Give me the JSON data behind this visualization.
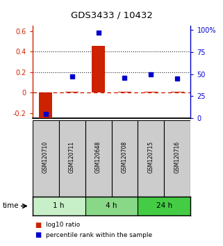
{
  "title": "GDS3433 / 10432",
  "samples": [
    "GSM120710",
    "GSM120711",
    "GSM120648",
    "GSM120708",
    "GSM120715",
    "GSM120716"
  ],
  "log10_ratio": [
    -0.255,
    0.005,
    0.455,
    0.005,
    0.005,
    0.005
  ],
  "percentile_rank": [
    5,
    47,
    97,
    46,
    50,
    45
  ],
  "ylim_left": [
    -0.25,
    0.65
  ],
  "ylim_right": [
    0,
    105
  ],
  "yticks_left": [
    -0.2,
    0.0,
    0.2,
    0.4,
    0.6
  ],
  "ytick_labels_left": [
    "-0.2",
    "0",
    "0.2",
    "0.4",
    "0.6"
  ],
  "yticks_right": [
    0,
    25,
    50,
    75,
    100
  ],
  "ytick_labels_right": [
    "0",
    "25",
    "50",
    "75",
    "100%"
  ],
  "groups": [
    {
      "label": "1 h",
      "samples": [
        0,
        1
      ],
      "color": "#c8f0c8"
    },
    {
      "label": "4 h",
      "samples": [
        2,
        3
      ],
      "color": "#88d888"
    },
    {
      "label": "24 h",
      "samples": [
        4,
        5
      ],
      "color": "#44cc44"
    }
  ],
  "bar_color": "#cc2200",
  "dot_color": "#0000cc",
  "zero_line_color": "#cc2200",
  "dotted_line_color": "#222222",
  "dotted_lines": [
    0.2,
    0.4
  ],
  "background_color": "#ffffff",
  "sample_box_color": "#cccccc",
  "legend_log10": "log10 ratio",
  "legend_percentile": "percentile rank within the sample",
  "time_label": "time"
}
